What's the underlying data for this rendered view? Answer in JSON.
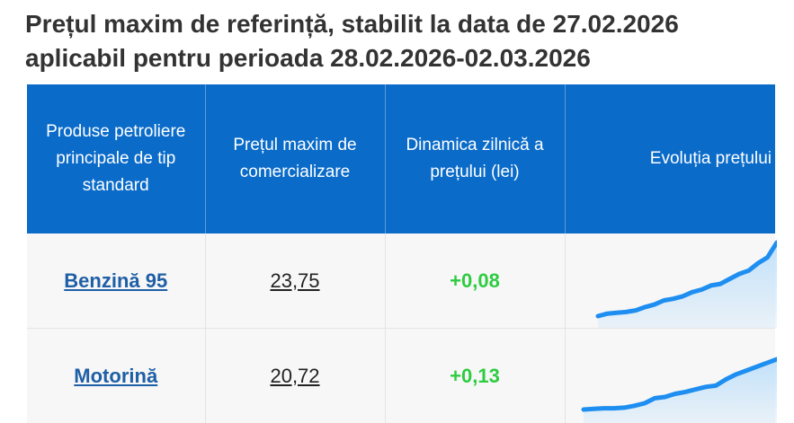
{
  "title": {
    "line1": "Prețul maxim de referință, stabilit la data de 27.02.2026",
    "line2": "aplicabil pentru perioada 28.02.2026-02.03.2026"
  },
  "table": {
    "headers": [
      "Produse petroliere principale de tip standard",
      "Prețul maxim de comercializare",
      "Dinamica zilnică a prețului (lei)",
      "Evoluția prețului"
    ],
    "rows": [
      {
        "product": "Benzină 95",
        "price": "23,75",
        "delta": "+0,08"
      },
      {
        "product": "Motorină",
        "price": "20,72",
        "delta": "+0,13"
      }
    ]
  },
  "colors": {
    "header_bg": "#0a6bc9",
    "delta_positive": "#2ecc40",
    "link": "#1f5fa6",
    "sparkline": "#1e8ef0",
    "sparkline_fill": "#bfe0fa"
  },
  "chart_data": [
    {
      "type": "area",
      "series": [
        {
          "values": [
            1,
            4,
            5,
            6,
            8,
            12,
            15,
            20,
            22,
            25,
            30,
            33,
            38,
            40,
            46,
            52,
            56,
            65,
            72,
            90
          ]
        }
      ]
    },
    {
      "type": "area",
      "series": [
        {
          "values": [
            0,
            1,
            2,
            2,
            3,
            6,
            10,
            18,
            20,
            25,
            28,
            32,
            36,
            38,
            48,
            56,
            62,
            68,
            74,
            80
          ]
        }
      ]
    }
  ]
}
